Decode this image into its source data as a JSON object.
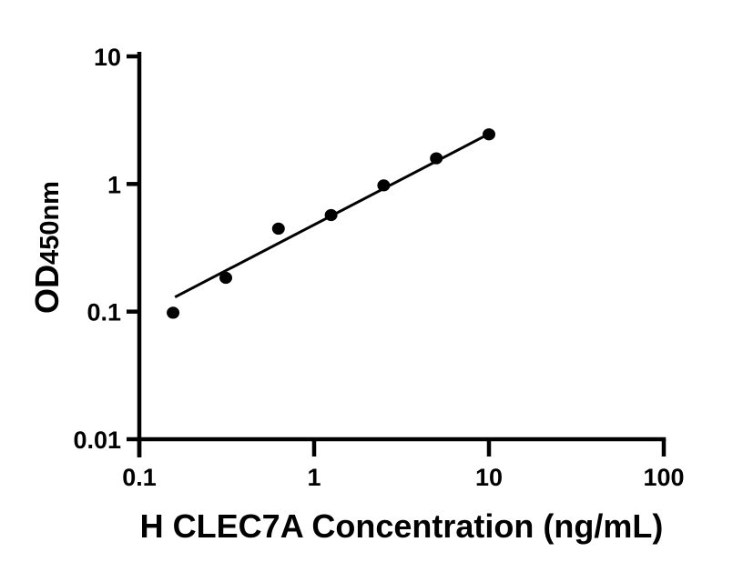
{
  "figure": {
    "background_color": "#ffffff",
    "ink_color": "#000000"
  },
  "chart_data": {
    "type": "scatter",
    "title": "",
    "xlabel": "H CLEC7A Concentration (ng/mL)",
    "ylabel_main": "OD",
    "ylabel_sub": "450nm",
    "x_scale": "log",
    "y_scale": "log",
    "xlim": [
      0.1,
      100
    ],
    "ylim": [
      0.01,
      10
    ],
    "x_ticks": [
      0.1,
      1,
      10,
      100
    ],
    "x_tick_labels": [
      "0.1",
      "1",
      "10",
      "100"
    ],
    "y_ticks": [
      0.01,
      0.1,
      1,
      10
    ],
    "y_tick_labels": [
      "0.01",
      "0.1",
      "1",
      "10"
    ],
    "grid": false,
    "legend": null,
    "series": [
      {
        "name": "standard-curve-points",
        "marker": "filled-circle",
        "marker_color": "#000000",
        "x": [
          0.156,
          0.3125,
          0.625,
          1.25,
          2.5,
          5,
          10
        ],
        "y": [
          0.098,
          0.184,
          0.447,
          0.571,
          0.975,
          1.59,
          2.45
        ]
      }
    ],
    "fit_line": {
      "name": "log-log-fit-line",
      "color": "#000000",
      "x": [
        0.16,
        10
      ],
      "y": [
        0.13,
        2.47
      ]
    }
  }
}
